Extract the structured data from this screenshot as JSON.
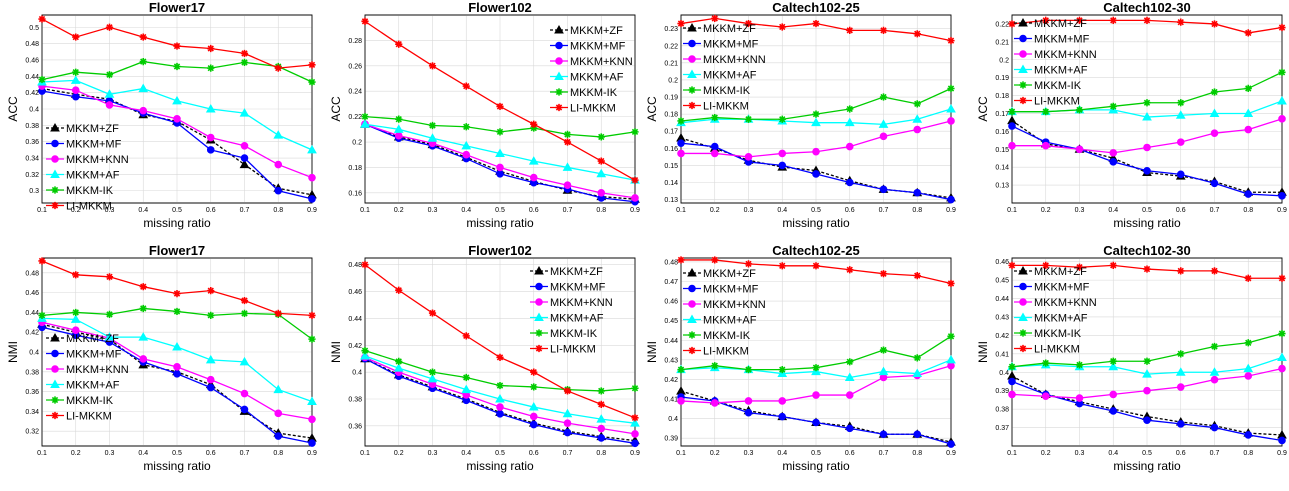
{
  "colors": {
    "MKKM+ZF": "#000000",
    "MKKM+MF": "#0000ff",
    "MKKM+KNN": "#ff00ff",
    "MKKM+AF": "#00ffff",
    "MKKM-IK": "#00cc00",
    "LI-MKKM": "#ff0000"
  },
  "chart_data": [
    {
      "type": "line",
      "title": "Flower17",
      "xlabel": "missing ratio",
      "ylabel": "ACC",
      "x": [
        0.1,
        0.2,
        0.3,
        0.4,
        0.5,
        0.6,
        0.7,
        0.8,
        0.9
      ],
      "xlim": [
        0.1,
        0.9
      ],
      "ylim": [
        0.285,
        0.515
      ],
      "yticks": [
        0.3,
        0.32,
        0.34,
        0.36,
        0.38,
        0.4,
        0.42,
        0.44,
        0.46,
        0.48,
        0.5
      ],
      "yticklabels": [
        "0.3",
        "0.32",
        "0.34",
        "0.36",
        "0.38",
        "0.4",
        "0.42",
        "0.44",
        "0.46",
        "0.48",
        "0.5"
      ],
      "legend_position": "lower-left",
      "series": [
        {
          "name": "MKKM+ZF",
          "values": [
            0.425,
            0.418,
            0.412,
            0.393,
            0.385,
            0.362,
            0.332,
            0.303,
            0.295
          ]
        },
        {
          "name": "MKKM+MF",
          "values": [
            0.422,
            0.415,
            0.41,
            0.395,
            0.383,
            0.35,
            0.34,
            0.3,
            0.29
          ]
        },
        {
          "name": "MKKM+KNN",
          "values": [
            0.428,
            0.423,
            0.405,
            0.398,
            0.388,
            0.365,
            0.355,
            0.332,
            0.316
          ]
        },
        {
          "name": "MKKM+AF",
          "values": [
            0.433,
            0.435,
            0.418,
            0.425,
            0.41,
            0.4,
            0.395,
            0.368,
            0.35
          ]
        },
        {
          "name": "MKKM-IK",
          "values": [
            0.436,
            0.445,
            0.442,
            0.458,
            0.452,
            0.45,
            0.457,
            0.452,
            0.433
          ]
        },
        {
          "name": "LI-MKKM",
          "values": [
            0.51,
            0.488,
            0.5,
            0.488,
            0.477,
            0.474,
            0.468,
            0.45,
            0.454
          ]
        }
      ]
    },
    {
      "type": "line",
      "title": "Flower102",
      "xlabel": "missing ratio",
      "ylabel": "ACC",
      "x": [
        0.1,
        0.2,
        0.3,
        0.4,
        0.5,
        0.6,
        0.7,
        0.8,
        0.9
      ],
      "xlim": [
        0.1,
        0.9
      ],
      "ylim": [
        0.152,
        0.3
      ],
      "yticks": [
        0.16,
        0.18,
        0.2,
        0.22,
        0.24,
        0.26,
        0.28
      ],
      "yticklabels": [
        "0.16",
        "0.18",
        "0.2",
        "0.22",
        "0.24",
        "0.26",
        "0.28"
      ],
      "legend_position": "top-right",
      "series": [
        {
          "name": "MKKM+ZF",
          "values": [
            0.214,
            0.204,
            0.198,
            0.188,
            0.177,
            0.169,
            0.162,
            0.157,
            0.155
          ]
        },
        {
          "name": "MKKM+MF",
          "values": [
            0.214,
            0.203,
            0.197,
            0.187,
            0.175,
            0.168,
            0.163,
            0.156,
            0.153
          ]
        },
        {
          "name": "MKKM+KNN",
          "values": [
            0.214,
            0.205,
            0.199,
            0.19,
            0.18,
            0.172,
            0.166,
            0.16,
            0.156
          ]
        },
        {
          "name": "MKKM+AF",
          "values": [
            0.214,
            0.21,
            0.203,
            0.197,
            0.191,
            0.185,
            0.18,
            0.175,
            0.17
          ]
        },
        {
          "name": "MKKM-IK",
          "values": [
            0.22,
            0.218,
            0.213,
            0.212,
            0.208,
            0.211,
            0.206,
            0.204,
            0.208
          ]
        },
        {
          "name": "LI-MKKM",
          "values": [
            0.295,
            0.277,
            0.26,
            0.244,
            0.228,
            0.214,
            0.2,
            0.185,
            0.17
          ]
        }
      ]
    },
    {
      "type": "line",
      "title": "Caltech102-25",
      "xlabel": "missing ratio",
      "ylabel": "ACC",
      "x": [
        0.1,
        0.2,
        0.3,
        0.4,
        0.5,
        0.6,
        0.7,
        0.8,
        0.9
      ],
      "xlim": [
        0.1,
        0.9
      ],
      "ylim": [
        0.128,
        0.238
      ],
      "yticks": [
        0.13,
        0.14,
        0.15,
        0.16,
        0.17,
        0.18,
        0.19,
        0.2,
        0.21,
        0.22,
        0.23
      ],
      "yticklabels": [
        "0.13",
        "0.14",
        "0.15",
        "0.16",
        "0.17",
        "0.18",
        "0.19",
        "0.2",
        "0.21",
        "0.22",
        "0.23"
      ],
      "legend_position": "top-left",
      "series": [
        {
          "name": "MKKM+ZF",
          "values": [
            0.166,
            0.16,
            0.153,
            0.149,
            0.147,
            0.141,
            0.136,
            0.134,
            0.131
          ]
        },
        {
          "name": "MKKM+MF",
          "values": [
            0.163,
            0.161,
            0.152,
            0.15,
            0.145,
            0.14,
            0.136,
            0.134,
            0.13
          ]
        },
        {
          "name": "MKKM+KNN",
          "values": [
            0.157,
            0.157,
            0.155,
            0.157,
            0.158,
            0.161,
            0.167,
            0.171,
            0.176
          ]
        },
        {
          "name": "MKKM+AF",
          "values": [
            0.175,
            0.177,
            0.177,
            0.176,
            0.175,
            0.175,
            0.174,
            0.177,
            0.183
          ]
        },
        {
          "name": "MKKM-IK",
          "values": [
            0.176,
            0.178,
            0.177,
            0.177,
            0.18,
            0.183,
            0.19,
            0.186,
            0.195
          ]
        },
        {
          "name": "LI-MKKM",
          "values": [
            0.233,
            0.236,
            0.233,
            0.231,
            0.233,
            0.229,
            0.229,
            0.227,
            0.223
          ]
        }
      ]
    },
    {
      "type": "line",
      "title": "Caltech102-30",
      "xlabel": "missing ratio",
      "ylabel": "ACC",
      "x": [
        0.1,
        0.2,
        0.3,
        0.4,
        0.5,
        0.6,
        0.7,
        0.8,
        0.9
      ],
      "xlim": [
        0.1,
        0.9
      ],
      "ylim": [
        0.12,
        0.225
      ],
      "yticks": [
        0.13,
        0.14,
        0.15,
        0.16,
        0.17,
        0.18,
        0.19,
        0.2,
        0.21,
        0.22
      ],
      "yticklabels": [
        "0.13",
        "0.14",
        "0.15",
        "0.16",
        "0.17",
        "0.18",
        "0.19",
        "0.2",
        "0.21",
        "0.22"
      ],
      "legend_position": "top-left",
      "series": [
        {
          "name": "MKKM+ZF",
          "values": [
            0.166,
            0.153,
            0.15,
            0.145,
            0.137,
            0.135,
            0.132,
            0.126,
            0.126
          ]
        },
        {
          "name": "MKKM+MF",
          "values": [
            0.163,
            0.154,
            0.15,
            0.143,
            0.138,
            0.136,
            0.131,
            0.125,
            0.124
          ]
        },
        {
          "name": "MKKM+KNN",
          "values": [
            0.152,
            0.152,
            0.15,
            0.148,
            0.151,
            0.154,
            0.159,
            0.161,
            0.167
          ]
        },
        {
          "name": "MKKM+AF",
          "values": [
            0.171,
            0.171,
            0.172,
            0.172,
            0.168,
            0.169,
            0.17,
            0.17,
            0.177
          ]
        },
        {
          "name": "MKKM-IK",
          "values": [
            0.171,
            0.171,
            0.172,
            0.174,
            0.176,
            0.176,
            0.182,
            0.184,
            0.193
          ]
        },
        {
          "name": "LI-MKKM",
          "values": [
            0.22,
            0.222,
            0.222,
            0.222,
            0.222,
            0.221,
            0.22,
            0.215,
            0.218
          ]
        }
      ]
    },
    {
      "type": "line",
      "title": "Flower17",
      "xlabel": "missing ratio",
      "ylabel": "NMI",
      "x": [
        0.1,
        0.2,
        0.3,
        0.4,
        0.5,
        0.6,
        0.7,
        0.8,
        0.9
      ],
      "xlim": [
        0.1,
        0.9
      ],
      "ylim": [
        0.305,
        0.495
      ],
      "yticks": [
        0.32,
        0.34,
        0.36,
        0.38,
        0.4,
        0.42,
        0.44,
        0.46,
        0.48
      ],
      "yticklabels": [
        "0.32",
        "0.34",
        "0.36",
        "0.38",
        "0.4",
        "0.42",
        "0.44",
        "0.46",
        "0.48"
      ],
      "legend_position": "lower-left",
      "series": [
        {
          "name": "MKKM+ZF",
          "values": [
            0.428,
            0.42,
            0.413,
            0.387,
            0.38,
            0.367,
            0.34,
            0.318,
            0.313
          ]
        },
        {
          "name": "MKKM+MF",
          "values": [
            0.425,
            0.417,
            0.41,
            0.39,
            0.378,
            0.364,
            0.342,
            0.315,
            0.308
          ]
        },
        {
          "name": "MKKM+KNN",
          "values": [
            0.43,
            0.422,
            0.414,
            0.393,
            0.385,
            0.372,
            0.358,
            0.338,
            0.332
          ]
        },
        {
          "name": "MKKM+AF",
          "values": [
            0.434,
            0.433,
            0.415,
            0.415,
            0.405,
            0.392,
            0.39,
            0.362,
            0.35
          ]
        },
        {
          "name": "MKKM-IK",
          "values": [
            0.437,
            0.44,
            0.438,
            0.444,
            0.441,
            0.437,
            0.439,
            0.438,
            0.413
          ]
        },
        {
          "name": "LI-MKKM",
          "values": [
            0.492,
            0.478,
            0.476,
            0.466,
            0.459,
            0.462,
            0.452,
            0.439,
            0.437
          ]
        }
      ]
    },
    {
      "type": "line",
      "title": "Flower102",
      "xlabel": "missing ratio",
      "ylabel": "NMI",
      "x": [
        0.1,
        0.2,
        0.3,
        0.4,
        0.5,
        0.6,
        0.7,
        0.8,
        0.9
      ],
      "xlim": [
        0.1,
        0.9
      ],
      "ylim": [
        0.345,
        0.485
      ],
      "yticks": [
        0.36,
        0.38,
        0.4,
        0.42,
        0.44,
        0.46,
        0.48
      ],
      "yticklabels": [
        "0.36",
        "0.38",
        "0.4",
        "0.42",
        "0.44",
        "0.46",
        "0.48"
      ],
      "legend_position": "top-right",
      "series": [
        {
          "name": "MKKM+ZF",
          "values": [
            0.41,
            0.398,
            0.389,
            0.38,
            0.37,
            0.362,
            0.356,
            0.352,
            0.349
          ]
        },
        {
          "name": "MKKM+MF",
          "values": [
            0.41,
            0.397,
            0.388,
            0.379,
            0.369,
            0.361,
            0.355,
            0.351,
            0.347
          ]
        },
        {
          "name": "MKKM+KNN",
          "values": [
            0.411,
            0.4,
            0.391,
            0.383,
            0.374,
            0.367,
            0.362,
            0.358,
            0.354
          ]
        },
        {
          "name": "MKKM+AF",
          "values": [
            0.412,
            0.403,
            0.395,
            0.387,
            0.38,
            0.374,
            0.369,
            0.365,
            0.362
          ]
        },
        {
          "name": "MKKM-IK",
          "values": [
            0.416,
            0.408,
            0.4,
            0.396,
            0.39,
            0.389,
            0.387,
            0.386,
            0.388
          ]
        },
        {
          "name": "LI-MKKM",
          "values": [
            0.48,
            0.461,
            0.444,
            0.427,
            0.411,
            0.4,
            0.386,
            0.376,
            0.366
          ]
        }
      ]
    },
    {
      "type": "line",
      "title": "Caltech102-25",
      "xlabel": "missing ratio",
      "ylabel": "NMI",
      "x": [
        0.1,
        0.2,
        0.3,
        0.4,
        0.5,
        0.6,
        0.7,
        0.8,
        0.9
      ],
      "xlim": [
        0.1,
        0.9
      ],
      "ylim": [
        0.386,
        0.482
      ],
      "yticks": [
        0.39,
        0.4,
        0.41,
        0.42,
        0.43,
        0.44,
        0.45,
        0.46,
        0.47,
        0.48
      ],
      "yticklabels": [
        "0.39",
        "0.4",
        "0.41",
        "0.42",
        "0.43",
        "0.44",
        "0.45",
        "0.46",
        "0.47",
        "0.48"
      ],
      "legend_position": "top-left",
      "series": [
        {
          "name": "MKKM+ZF",
          "values": [
            0.414,
            0.409,
            0.404,
            0.401,
            0.398,
            0.396,
            0.392,
            0.392,
            0.388
          ]
        },
        {
          "name": "MKKM+MF",
          "values": [
            0.411,
            0.409,
            0.403,
            0.401,
            0.398,
            0.395,
            0.392,
            0.392,
            0.387
          ]
        },
        {
          "name": "MKKM+KNN",
          "values": [
            0.409,
            0.408,
            0.409,
            0.409,
            0.412,
            0.412,
            0.421,
            0.422,
            0.427
          ]
        },
        {
          "name": "MKKM+AF",
          "values": [
            0.425,
            0.426,
            0.425,
            0.423,
            0.424,
            0.421,
            0.424,
            0.423,
            0.43
          ]
        },
        {
          "name": "MKKM-IK",
          "values": [
            0.425,
            0.427,
            0.425,
            0.425,
            0.426,
            0.429,
            0.435,
            0.431,
            0.442
          ]
        },
        {
          "name": "LI-MKKM",
          "values": [
            0.481,
            0.481,
            0.479,
            0.478,
            0.478,
            0.476,
            0.474,
            0.473,
            0.469
          ]
        }
      ]
    },
    {
      "type": "line",
      "title": "Caltech102-30",
      "xlabel": "missing ratio",
      "ylabel": "NMI",
      "x": [
        0.1,
        0.2,
        0.3,
        0.4,
        0.5,
        0.6,
        0.7,
        0.8,
        0.9
      ],
      "xlim": [
        0.1,
        0.9
      ],
      "ylim": [
        0.36,
        0.462
      ],
      "yticks": [
        0.37,
        0.38,
        0.39,
        0.4,
        0.41,
        0.42,
        0.43,
        0.44,
        0.45,
        0.46
      ],
      "yticklabels": [
        "0.37",
        "0.38",
        "0.39",
        "0.4",
        "0.41",
        "0.42",
        "0.43",
        "0.44",
        "0.45",
        "0.46"
      ],
      "legend_position": "top-left",
      "series": [
        {
          "name": "MKKM+ZF",
          "values": [
            0.398,
            0.388,
            0.384,
            0.38,
            0.376,
            0.373,
            0.371,
            0.367,
            0.366
          ]
        },
        {
          "name": "MKKM+MF",
          "values": [
            0.395,
            0.388,
            0.383,
            0.379,
            0.374,
            0.372,
            0.37,
            0.366,
            0.363
          ]
        },
        {
          "name": "MKKM+KNN",
          "values": [
            0.388,
            0.387,
            0.386,
            0.388,
            0.39,
            0.392,
            0.396,
            0.398,
            0.402
          ]
        },
        {
          "name": "MKKM+AF",
          "values": [
            0.403,
            0.404,
            0.403,
            0.403,
            0.399,
            0.4,
            0.4,
            0.402,
            0.408
          ]
        },
        {
          "name": "MKKM-IK",
          "values": [
            0.403,
            0.405,
            0.404,
            0.406,
            0.406,
            0.41,
            0.414,
            0.416,
            0.421
          ]
        },
        {
          "name": "LI-MKKM",
          "values": [
            0.458,
            0.458,
            0.457,
            0.458,
            0.456,
            0.455,
            0.455,
            0.451,
            0.451
          ]
        }
      ]
    }
  ]
}
